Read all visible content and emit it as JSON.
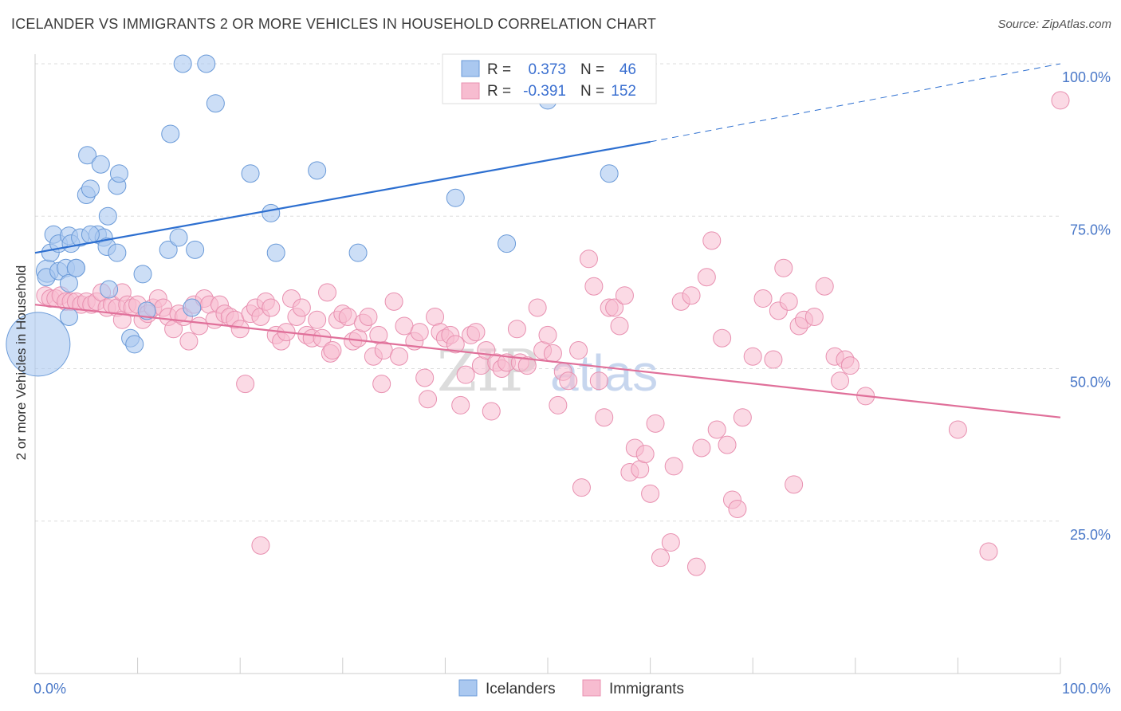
{
  "header": {
    "title": "ICELANDER VS IMMIGRANTS 2 OR MORE VEHICLES IN HOUSEHOLD CORRELATION CHART",
    "source": "Source: ZipAtlas.com"
  },
  "watermark": {
    "zip": "ZIP",
    "atlas": "atlas"
  },
  "legend": {
    "r_label": "R =",
    "n_label": "N =",
    "rows": [
      {
        "name": "Icelanders",
        "r": "0.373",
        "n": "46"
      },
      {
        "name": "Immigrants",
        "r": "-0.391",
        "n": "152"
      }
    ]
  },
  "colors": {
    "icelanders_fill": "#aac8f0",
    "icelanders_stroke": "#6a9ad8",
    "icelanders_line": "#2d6fd0",
    "immigrants_fill": "#f7bcd0",
    "immigrants_stroke": "#e890b0",
    "immigrants_line": "#e0709a",
    "tick_text": "#4a78c8",
    "grid": "#dddddd"
  },
  "chart_data": {
    "type": "scatter",
    "title": "ICELANDER VS IMMIGRANTS 2 OR MORE VEHICLES IN HOUSEHOLD CORRELATION CHART",
    "xlabel": "",
    "ylabel": "2 or more Vehicles in Household",
    "xlim": [
      0,
      100
    ],
    "ylim": [
      0,
      100
    ],
    "x_tick_labels": [
      "0.0%",
      "100.0%"
    ],
    "y_tick_labels": [
      "25.0%",
      "50.0%",
      "75.0%",
      "100.0%"
    ],
    "y_ticks": [
      25,
      50,
      75,
      100
    ],
    "grid": true,
    "legend_position": "top-center",
    "series": [
      {
        "name": "Icelanders",
        "r": 0.373,
        "n": 46,
        "trend": {
          "x": [
            0,
            60
          ],
          "y": [
            69,
            87.2
          ],
          "dashed_to": [
            100,
            100
          ]
        },
        "points": [
          [
            0.3,
            54,
            40
          ],
          [
            1.2,
            66,
            14
          ],
          [
            1.1,
            65,
            11
          ],
          [
            1.5,
            69,
            11
          ],
          [
            1.8,
            72,
            11
          ],
          [
            2.3,
            70.5,
            11
          ],
          [
            2.3,
            66,
            11
          ],
          [
            3,
            66.5,
            11
          ],
          [
            3.3,
            71.8,
            11
          ],
          [
            3.5,
            70.5,
            11
          ],
          [
            4,
            66.5,
            11
          ],
          [
            3.3,
            58.5,
            11
          ],
          [
            3.3,
            64,
            11
          ],
          [
            4,
            66.5,
            11
          ],
          [
            4.4,
            71.5,
            11
          ],
          [
            5,
            78.5,
            11
          ],
          [
            5.4,
            79.5,
            11
          ],
          [
            6.1,
            72,
            11
          ],
          [
            6.7,
            71.5,
            11
          ],
          [
            5.4,
            72,
            11
          ],
          [
            5.1,
            85,
            11
          ],
          [
            6.4,
            83.5,
            11
          ],
          [
            7,
            70,
            11
          ],
          [
            7.1,
            75,
            11
          ],
          [
            7.2,
            63,
            11
          ],
          [
            8,
            80,
            11
          ],
          [
            8,
            69,
            11
          ],
          [
            8.2,
            82,
            11
          ],
          [
            9.3,
            55,
            11
          ],
          [
            9.7,
            54,
            11
          ],
          [
            10.5,
            65.5,
            11
          ],
          [
            10.9,
            59.5,
            11
          ],
          [
            13,
            69.5,
            11
          ],
          [
            13.2,
            88.5,
            11
          ],
          [
            14,
            71.5,
            11
          ],
          [
            14.4,
            100,
            11
          ],
          [
            15.3,
            60,
            11
          ],
          [
            15.6,
            69.5,
            11
          ],
          [
            16.7,
            100,
            11
          ],
          [
            17.6,
            93.5,
            11
          ],
          [
            21,
            82,
            11
          ],
          [
            23,
            75.5,
            11
          ],
          [
            23.5,
            69,
            11
          ],
          [
            27.5,
            82.5,
            11
          ],
          [
            31.5,
            69,
            11
          ],
          [
            41,
            78,
            11
          ],
          [
            46,
            70.5,
            11
          ],
          [
            50,
            94,
            11
          ],
          [
            56,
            82,
            11
          ]
        ]
      },
      {
        "name": "Immigrants",
        "r": -0.391,
        "n": 152,
        "trend": {
          "x": [
            0,
            100
          ],
          "y": [
            60.5,
            42
          ]
        },
        "points": [
          [
            1,
            62,
            11
          ],
          [
            1.5,
            61.5,
            11
          ],
          [
            2,
            61.5,
            11
          ],
          [
            2.5,
            62,
            11
          ],
          [
            3,
            61,
            11
          ],
          [
            3.5,
            61,
            11
          ],
          [
            4,
            61,
            11
          ],
          [
            4.5,
            60.5,
            11
          ],
          [
            5,
            61,
            11
          ],
          [
            5.5,
            60.5,
            11
          ],
          [
            6,
            61,
            11
          ],
          [
            6.5,
            62.5,
            11
          ],
          [
            7,
            60,
            11
          ],
          [
            7.5,
            60.5,
            11
          ],
          [
            8,
            60,
            11
          ],
          [
            8.5,
            62.5,
            11
          ],
          [
            8.5,
            58,
            11
          ],
          [
            9,
            60.5,
            11
          ],
          [
            9.5,
            60,
            11
          ],
          [
            10,
            60.5,
            11
          ],
          [
            10.5,
            58,
            11
          ],
          [
            11,
            59,
            11
          ],
          [
            11.5,
            60,
            11
          ],
          [
            12,
            61.5,
            11
          ],
          [
            12.5,
            60,
            11
          ],
          [
            13,
            58.5,
            11
          ],
          [
            13.5,
            56.5,
            11
          ],
          [
            14,
            59,
            11
          ],
          [
            14.5,
            58.5,
            11
          ],
          [
            15,
            54.5,
            11
          ],
          [
            15.5,
            60.5,
            11
          ],
          [
            16,
            57,
            11
          ],
          [
            16.5,
            61.5,
            11
          ],
          [
            17,
            60.5,
            11
          ],
          [
            17.5,
            58,
            11
          ],
          [
            18,
            60.5,
            11
          ],
          [
            18.5,
            59,
            11
          ],
          [
            19,
            58.5,
            11
          ],
          [
            19.5,
            58,
            11
          ],
          [
            20,
            56.5,
            11
          ],
          [
            20.5,
            47.5,
            11
          ],
          [
            21,
            59,
            11
          ],
          [
            21.5,
            60,
            11
          ],
          [
            22,
            58.5,
            11
          ],
          [
            22.5,
            61,
            11
          ],
          [
            23,
            60,
            11
          ],
          [
            23.5,
            55.5,
            11
          ],
          [
            24,
            54.5,
            11
          ],
          [
            24.5,
            56,
            11
          ],
          [
            25,
            61.5,
            11
          ],
          [
            25.5,
            58.5,
            11
          ],
          [
            26,
            60,
            11
          ],
          [
            26.5,
            55.5,
            11
          ],
          [
            27,
            55,
            11
          ],
          [
            27.5,
            58,
            11
          ],
          [
            28,
            55,
            11
          ],
          [
            28.5,
            62.5,
            11
          ],
          [
            28.8,
            52.5,
            11
          ],
          [
            29,
            53,
            11
          ],
          [
            29.5,
            58,
            11
          ],
          [
            30,
            59,
            11
          ],
          [
            30.5,
            58.5,
            11
          ],
          [
            31,
            54.5,
            11
          ],
          [
            31.5,
            55,
            11
          ],
          [
            32,
            57.5,
            11
          ],
          [
            32.5,
            58.5,
            11
          ],
          [
            33,
            52,
            11
          ],
          [
            33.5,
            55.5,
            11
          ],
          [
            33.8,
            47.5,
            11
          ],
          [
            34,
            53,
            11
          ],
          [
            35,
            61,
            11
          ],
          [
            35.5,
            52,
            11
          ],
          [
            36,
            57,
            11
          ],
          [
            37,
            54.5,
            11
          ],
          [
            37.5,
            56,
            11
          ],
          [
            38,
            48.5,
            11
          ],
          [
            38.3,
            45,
            11
          ],
          [
            39,
            58.5,
            11
          ],
          [
            39.5,
            56,
            11
          ],
          [
            40,
            55,
            11
          ],
          [
            40.5,
            55.5,
            11
          ],
          [
            41,
            54,
            11
          ],
          [
            41.5,
            44,
            11
          ],
          [
            42,
            49,
            11
          ],
          [
            42.5,
            55.5,
            11
          ],
          [
            43,
            56,
            11
          ],
          [
            43.5,
            50.5,
            11
          ],
          [
            44,
            53,
            11
          ],
          [
            44.5,
            43,
            11
          ],
          [
            45,
            51,
            11
          ],
          [
            45.5,
            50,
            11
          ],
          [
            46,
            51,
            11
          ],
          [
            47,
            56.5,
            11
          ],
          [
            47.3,
            51,
            11
          ],
          [
            48,
            50.5,
            11
          ],
          [
            49,
            60,
            11
          ],
          [
            49.5,
            53,
            11
          ],
          [
            50,
            55.5,
            11
          ],
          [
            50.5,
            52.5,
            11
          ],
          [
            51,
            44,
            11
          ],
          [
            51.5,
            49.5,
            11
          ],
          [
            52,
            48,
            11
          ],
          [
            53,
            53,
            11
          ],
          [
            53.3,
            30.5,
            11
          ],
          [
            54,
            68,
            11
          ],
          [
            54.5,
            63.5,
            11
          ],
          [
            55,
            48,
            11
          ],
          [
            55.5,
            42,
            11
          ],
          [
            56,
            60,
            11
          ],
          [
            56.5,
            60,
            11
          ],
          [
            57,
            57,
            11
          ],
          [
            57.5,
            62,
            11
          ],
          [
            58,
            33,
            11
          ],
          [
            58.5,
            37,
            11
          ],
          [
            59,
            33.5,
            11
          ],
          [
            59.5,
            36,
            11
          ],
          [
            60,
            29.5,
            11
          ],
          [
            60.5,
            41,
            11
          ],
          [
            61,
            19,
            11
          ],
          [
            62,
            21.5,
            11
          ],
          [
            62.3,
            34,
            11
          ],
          [
            63,
            61,
            11
          ],
          [
            64,
            62,
            11
          ],
          [
            64.5,
            17.5,
            11
          ],
          [
            65,
            37,
            11
          ],
          [
            65.5,
            65,
            11
          ],
          [
            66,
            71,
            11
          ],
          [
            66.5,
            40,
            11
          ],
          [
            67,
            55,
            11
          ],
          [
            67.5,
            37.5,
            11
          ],
          [
            68,
            28.5,
            11
          ],
          [
            68.5,
            27,
            11
          ],
          [
            69,
            42,
            11
          ],
          [
            70,
            52,
            11
          ],
          [
            71,
            61.5,
            11
          ],
          [
            72,
            51.5,
            11
          ],
          [
            72.5,
            59.5,
            11
          ],
          [
            73,
            66.5,
            11
          ],
          [
            73.5,
            61,
            11
          ],
          [
            74,
            31,
            11
          ],
          [
            74.5,
            57,
            11
          ],
          [
            75,
            58,
            11
          ],
          [
            76,
            58.5,
            11
          ],
          [
            77,
            63.5,
            11
          ],
          [
            78,
            52,
            11
          ],
          [
            78.5,
            48,
            11
          ],
          [
            79,
            51.5,
            11
          ],
          [
            79.5,
            50.5,
            11
          ],
          [
            81,
            45.5,
            11
          ],
          [
            90,
            40,
            11
          ],
          [
            93,
            20,
            11
          ],
          [
            100,
            94,
            11
          ],
          [
            22,
            21,
            11
          ]
        ]
      }
    ]
  }
}
